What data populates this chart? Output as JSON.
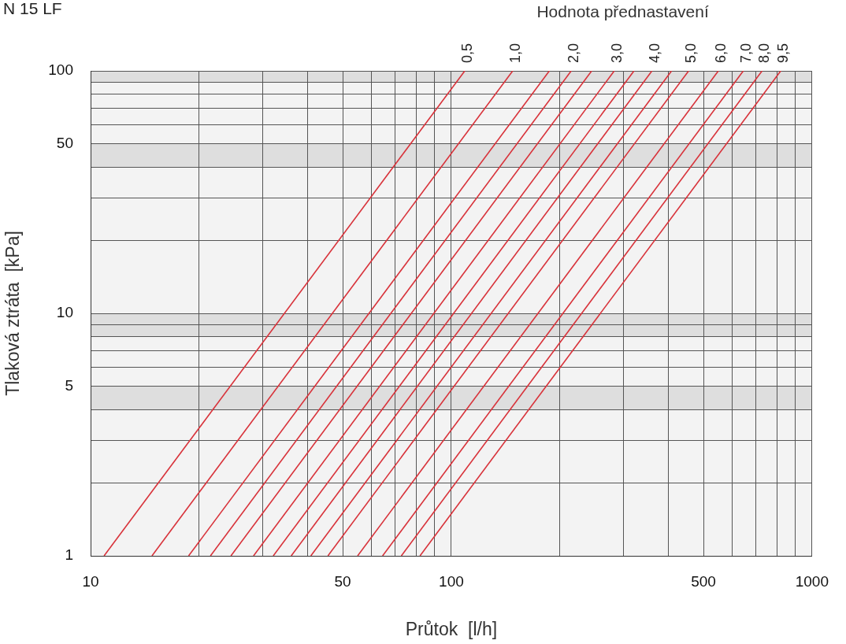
{
  "chart_data": {
    "type": "line",
    "title": "N 15 LF",
    "legend_title": "Hodnota přednastavení",
    "xlabel": "Průtok  [l/h]",
    "ylabel": "Tlaková ztráta  [kPa]",
    "log": "xy",
    "grid": true,
    "marker": "none",
    "legend": false,
    "xlim": [
      10,
      1000
    ],
    "ylim": [
      1,
      100
    ],
    "xticks": [
      10,
      {
        "value": 20,
        "label": null
      },
      {
        "value": 30,
        "label": null
      },
      {
        "value": 40,
        "label": null
      },
      50,
      {
        "value": 60,
        "label": null
      },
      {
        "value": 70,
        "label": null
      },
      {
        "value": 80,
        "label": null
      },
      {
        "value": 90,
        "label": null
      },
      100,
      {
        "value": 200,
        "label": null
      },
      {
        "value": 300,
        "label": null
      },
      {
        "value": 400,
        "label": null
      },
      500,
      {
        "value": 600,
        "label": null
      },
      {
        "value": 700,
        "label": null
      },
      {
        "value": 800,
        "label": null
      },
      {
        "value": 900,
        "label": null
      },
      1000
    ],
    "yticks": [
      1,
      {
        "value": 2,
        "label": null
      },
      {
        "value": 3,
        "label": null
      },
      {
        "value": 4,
        "label": null
      },
      5,
      {
        "value": 6,
        "label": null
      },
      {
        "value": 7,
        "label": null
      },
      {
        "value": 8,
        "label": null
      },
      {
        "value": 9,
        "label": null
      },
      10,
      {
        "value": 20,
        "label": null
      },
      {
        "value": 30,
        "label": null
      },
      {
        "value": 40,
        "label": null
      },
      50,
      {
        "value": 60,
        "label": null
      },
      {
        "value": 70,
        "label": null
      },
      {
        "value": 80,
        "label": null
      },
      {
        "value": 90,
        "label": null
      },
      100
    ],
    "bands": [
      {
        "axis": "y",
        "from": 90,
        "to": 100,
        "color": "#dedede"
      },
      {
        "axis": "y",
        "from": 40,
        "to": 50,
        "color": "#dedede"
      },
      {
        "axis": "y",
        "from": 8,
        "to": 10,
        "color": "#dedede"
      },
      {
        "axis": "y",
        "from": 4,
        "to": 5,
        "color": "#dedede"
      }
    ],
    "series": [
      {
        "name": "0,5",
        "color": "#d8323a",
        "x": [
          10.9,
          109
        ],
        "values": [
          1,
          100
        ]
      },
      {
        "name": "1,0",
        "color": "#d8323a",
        "x": [
          14.8,
          148
        ],
        "values": [
          1,
          100
        ]
      },
      {
        "color": "#d8323a",
        "x": [
          18.7,
          187
        ],
        "values": [
          1,
          100
        ]
      },
      {
        "name": "2,0",
        "color": "#d8323a",
        "x": [
          21.5,
          215
        ],
        "values": [
          1,
          100
        ]
      },
      {
        "color": "#d8323a",
        "x": [
          24.5,
          245
        ],
        "values": [
          1,
          100
        ]
      },
      {
        "name": "3,0",
        "color": "#d8323a",
        "x": [
          28.3,
          283
        ],
        "values": [
          1,
          100
        ]
      },
      {
        "color": "#d8323a",
        "x": [
          32.1,
          321
        ],
        "values": [
          1,
          100
        ]
      },
      {
        "name": "4,0",
        "color": "#d8323a",
        "x": [
          36,
          360
        ],
        "values": [
          1,
          100
        ]
      },
      {
        "color": "#d8323a",
        "x": [
          40.8,
          408
        ],
        "values": [
          1,
          100
        ]
      },
      {
        "name": "5,0",
        "color": "#d8323a",
        "x": [
          45.5,
          455
        ],
        "values": [
          1,
          100
        ]
      },
      {
        "name": "6,0",
        "color": "#d8323a",
        "x": [
          55,
          550
        ],
        "values": [
          1,
          100
        ]
      },
      {
        "name": "7,0",
        "color": "#d8323a",
        "x": [
          64.5,
          645
        ],
        "values": [
          1,
          100
        ]
      },
      {
        "name": "8,0",
        "color": "#d8323a",
        "x": [
          72.7,
          727
        ],
        "values": [
          1,
          100
        ]
      },
      {
        "name": "9,5",
        "color": "#d8323a",
        "x": [
          81.9,
          819
        ],
        "values": [
          1,
          100
        ]
      }
    ]
  }
}
